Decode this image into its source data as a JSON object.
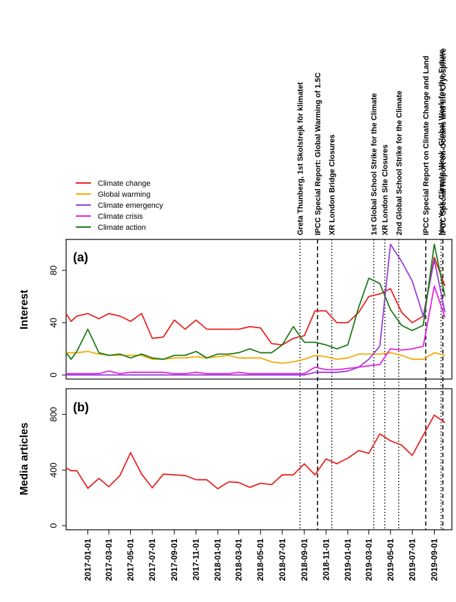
{
  "chart_data": [
    {
      "panel_label": "(a)",
      "type": "line",
      "ylabel": "Interest",
      "ylim": [
        0,
        100
      ],
      "yticks": [
        0,
        40,
        80
      ],
      "x": [
        "2016-11-01",
        "2016-11-15",
        "2016-12-01",
        "2017-01-01",
        "2017-02-01",
        "2017-03-01",
        "2017-04-01",
        "2017-05-01",
        "2017-06-01",
        "2017-07-01",
        "2017-08-01",
        "2017-09-01",
        "2017-10-01",
        "2017-11-01",
        "2017-12-01",
        "2018-01-01",
        "2018-02-01",
        "2018-03-01",
        "2018-04-01",
        "2018-05-01",
        "2018-06-01",
        "2018-07-01",
        "2018-08-01",
        "2018-09-01",
        "2018-10-01",
        "2018-11-01",
        "2018-12-01",
        "2019-01-01",
        "2019-02-01",
        "2019-03-01",
        "2019-04-01",
        "2019-05-01",
        "2019-06-01",
        "2019-07-01",
        "2019-08-01",
        "2019-09-01",
        "2019-10-01"
      ],
      "series": [
        {
          "name": "Climate change",
          "color": "#e8211d",
          "values": [
            47,
            41,
            45,
            47,
            43,
            47,
            45,
            41,
            47,
            28,
            29,
            42,
            35,
            42,
            35,
            35,
            35,
            35,
            37,
            36,
            24,
            23,
            28,
            30,
            49,
            49,
            40,
            40,
            48,
            60,
            62,
            66,
            48,
            40,
            45,
            90,
            68
          ]
        },
        {
          "name": "Global warming",
          "color": "#f5a800",
          "values": [
            17,
            17,
            17,
            18,
            16,
            15,
            15,
            15,
            15,
            12,
            12,
            13,
            13,
            14,
            13,
            14,
            15,
            13,
            13,
            13,
            10,
            9,
            10,
            12,
            15,
            14,
            12,
            13,
            16,
            16,
            16,
            17,
            15,
            12,
            12,
            17,
            15
          ]
        },
        {
          "name": "Climate emergency",
          "color": "#9b3ad6",
          "values": [
            0,
            0,
            0,
            0,
            0,
            0,
            0,
            0,
            0,
            0,
            0,
            0,
            0,
            0,
            0,
            0,
            0,
            0,
            0,
            0,
            0,
            0,
            0,
            0,
            2,
            2,
            2,
            3,
            6,
            12,
            22,
            100,
            87,
            72,
            45,
            88,
            48
          ]
        },
        {
          "name": "Climate crisis",
          "color": "#e61ee6",
          "values": [
            1,
            1,
            1,
            1,
            1,
            3,
            1,
            2,
            2,
            2,
            2,
            1,
            1,
            2,
            1,
            1,
            1,
            2,
            1,
            1,
            1,
            1,
            1,
            1,
            6,
            4,
            4,
            5,
            6,
            7,
            8,
            20,
            19,
            20,
            22,
            68,
            44
          ]
        },
        {
          "name": "Climate action",
          "color": "#1a7a16",
          "values": [
            17,
            12,
            18,
            35,
            17,
            15,
            16,
            13,
            16,
            13,
            12,
            15,
            15,
            18,
            13,
            16,
            16,
            17,
            20,
            17,
            17,
            23,
            37,
            25,
            25,
            23,
            20,
            23,
            52,
            74,
            70,
            50,
            38,
            34,
            38,
            100,
            60
          ]
        }
      ]
    },
    {
      "panel_label": "(b)",
      "type": "line",
      "ylabel": "Media articles",
      "ylim": [
        0,
        950
      ],
      "yticks": [
        0,
        400,
        800
      ],
      "x": [
        "2016-11-01",
        "2016-11-15",
        "2016-12-01",
        "2017-01-01",
        "2017-02-01",
        "2017-03-01",
        "2017-04-01",
        "2017-05-01",
        "2017-06-01",
        "2017-07-01",
        "2017-08-01",
        "2017-09-01",
        "2017-10-01",
        "2017-11-01",
        "2017-12-01",
        "2018-01-01",
        "2018-02-01",
        "2018-03-01",
        "2018-04-01",
        "2018-05-01",
        "2018-06-01",
        "2018-07-01",
        "2018-08-01",
        "2018-09-01",
        "2018-10-01",
        "2018-11-01",
        "2018-12-01",
        "2019-01-01",
        "2019-02-01",
        "2019-03-01",
        "2019-04-01",
        "2019-05-01",
        "2019-06-01",
        "2019-07-01",
        "2019-08-01",
        "2019-09-01",
        "2019-10-01"
      ],
      "series": [
        {
          "name": "Media articles",
          "color": "#e8211d",
          "values": [
            415,
            395,
            395,
            268,
            340,
            280,
            360,
            525,
            370,
            272,
            370,
            365,
            360,
            330,
            330,
            265,
            315,
            310,
            275,
            305,
            295,
            365,
            365,
            445,
            365,
            480,
            445,
            485,
            540,
            520,
            660,
            610,
            580,
            505,
            650,
            795,
            740
          ]
        }
      ]
    }
  ],
  "x_tick_labels": [
    "2017-01-01",
    "2017-03-01",
    "2017-05-01",
    "2017-07-01",
    "2017-09-01",
    "2017-11-01",
    "2018-01-01",
    "2018-03-01",
    "2018-05-01",
    "2018-07-01",
    "2018-09-01",
    "2018-11-01",
    "2019-01-01",
    "2019-03-01",
    "2019-05-01",
    "2019-07-01",
    "2019-09-01"
  ],
  "events": [
    {
      "date": "2018-08-20",
      "label": "Greta Thunberg, 1st Skolstrejk för klimatet",
      "style": "dotted"
    },
    {
      "date": "2018-10-08",
      "label": "IPCC Special Report: Global Warming of 1.5C",
      "style": "dashed"
    },
    {
      "date": "2018-11-17",
      "label": "XR London Bridge Closures",
      "style": "dotted"
    },
    {
      "date": "2019-03-15",
      "label": "1st Global School Strike for the Climate",
      "style": "dotted"
    },
    {
      "date": "2019-04-15",
      "label": "XR London Site Closures",
      "style": "dotted"
    },
    {
      "date": "2019-05-24",
      "label": "2nd Global School Strike for the Climate",
      "style": "dotted"
    },
    {
      "date": "2019-08-08",
      "label": "IPCC Special Report on Climate Change and Land",
      "style": "dashed"
    },
    {
      "date": "2019-09-20",
      "label": "New York Climate Week, Global Week for the Future",
      "style": "dotted"
    },
    {
      "date": "2019-09-25",
      "label": "IPCC Special Report on Oceans and the Cryosphere",
      "style": "dashed"
    }
  ],
  "legend_position": "top-left"
}
